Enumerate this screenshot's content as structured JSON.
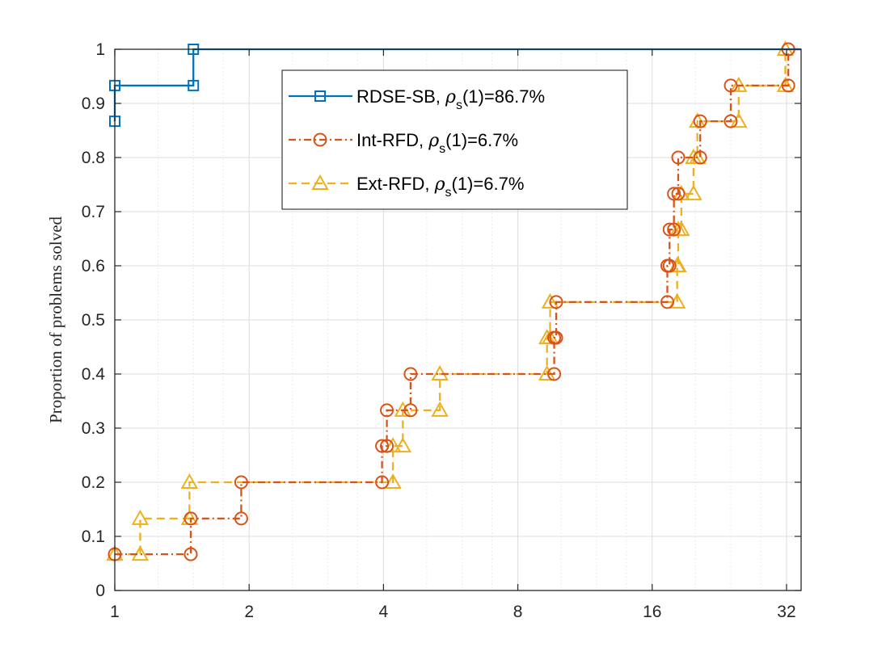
{
  "chart_data": {
    "type": "line",
    "step": true,
    "title": "",
    "xlabel": "",
    "ylabel": "Proportion of problems solved",
    "xscale": "log2",
    "xlim": [
      1,
      34.5
    ],
    "ylim": [
      0,
      1
    ],
    "xticks": [
      1,
      2,
      4,
      8,
      16,
      32
    ],
    "xtick_labels": [
      "1",
      "2",
      "4",
      "8",
      "16",
      "32"
    ],
    "yticks": [
      0,
      0.1,
      0.2,
      0.3,
      0.4,
      0.5,
      0.6,
      0.7,
      0.8,
      0.9,
      1
    ],
    "ytick_labels": [
      "0",
      "0.1",
      "0.2",
      "0.3",
      "0.4",
      "0.5",
      "0.6",
      "0.7",
      "0.8",
      "0.9",
      "1"
    ],
    "grid": true,
    "legend_position": "top-center",
    "series": [
      {
        "name": "RDSE-SB",
        "legend_prefix": "RDSE-SB, ",
        "rho_symbol": "ρ",
        "rho_sub": "s",
        "legend_suffix": "(1)=86.7%",
        "color": "#0072BD",
        "marker": "square",
        "linestyle": "solid",
        "points": [
          [
            1,
            0.867
          ],
          [
            1,
            0.933
          ],
          [
            1.5,
            0.933
          ],
          [
            1.5,
            1.0
          ],
          [
            34.5,
            1.0
          ]
        ]
      },
      {
        "name": "Int-RFD",
        "legend_prefix": "Int-RFD, ",
        "rho_symbol": "ρ",
        "rho_sub": "s",
        "legend_suffix": "(1)=6.7%",
        "color": "#D95319",
        "marker": "circle",
        "linestyle": "dashdot",
        "points": [
          [
            1,
            0.067
          ],
          [
            1.48,
            0.067
          ],
          [
            1.48,
            0.133
          ],
          [
            1.92,
            0.133
          ],
          [
            1.92,
            0.2
          ],
          [
            3.97,
            0.2
          ],
          [
            3.97,
            0.267
          ],
          [
            4.07,
            0.267
          ],
          [
            4.07,
            0.333
          ],
          [
            4.6,
            0.333
          ],
          [
            4.6,
            0.4
          ],
          [
            9.65,
            0.4
          ],
          [
            9.65,
            0.467
          ],
          [
            9.75,
            0.467
          ],
          [
            9.75,
            0.533
          ],
          [
            17.3,
            0.533
          ],
          [
            17.3,
            0.6
          ],
          [
            17.5,
            0.6
          ],
          [
            17.5,
            0.667
          ],
          [
            17.9,
            0.667
          ],
          [
            17.9,
            0.733
          ],
          [
            18.3,
            0.733
          ],
          [
            18.3,
            0.8
          ],
          [
            20.5,
            0.8
          ],
          [
            20.5,
            0.867
          ],
          [
            24.0,
            0.867
          ],
          [
            24.0,
            0.933
          ],
          [
            32.3,
            0.933
          ],
          [
            32.3,
            1.0
          ],
          [
            34.5,
            1.0
          ]
        ]
      },
      {
        "name": "Ext-RFD",
        "legend_prefix": "Ext-RFD, ",
        "rho_symbol": "ρ",
        "rho_sub": "s",
        "legend_suffix": "(1)=6.7%",
        "color": "#EDB120",
        "marker": "triangle",
        "linestyle": "dashed",
        "points": [
          [
            1,
            0.067
          ],
          [
            1.14,
            0.067
          ],
          [
            1.14,
            0.133
          ],
          [
            1.47,
            0.133
          ],
          [
            1.47,
            0.2
          ],
          [
            4.2,
            0.2
          ],
          [
            4.2,
            0.267
          ],
          [
            4.42,
            0.267
          ],
          [
            4.42,
            0.333
          ],
          [
            5.35,
            0.333
          ],
          [
            5.35,
            0.4
          ],
          [
            9.3,
            0.4
          ],
          [
            9.3,
            0.467
          ],
          [
            9.45,
            0.467
          ],
          [
            9.45,
            0.533
          ],
          [
            18.2,
            0.533
          ],
          [
            18.2,
            0.6
          ],
          [
            18.3,
            0.6
          ],
          [
            18.3,
            0.667
          ],
          [
            18.6,
            0.667
          ],
          [
            18.6,
            0.733
          ],
          [
            19.8,
            0.733
          ],
          [
            19.8,
            0.8
          ],
          [
            20.2,
            0.8
          ],
          [
            20.2,
            0.867
          ],
          [
            25.0,
            0.867
          ],
          [
            25.0,
            0.933
          ],
          [
            31.8,
            0.933
          ],
          [
            31.8,
            1.0
          ],
          [
            34.5,
            1.0
          ]
        ]
      }
    ]
  }
}
